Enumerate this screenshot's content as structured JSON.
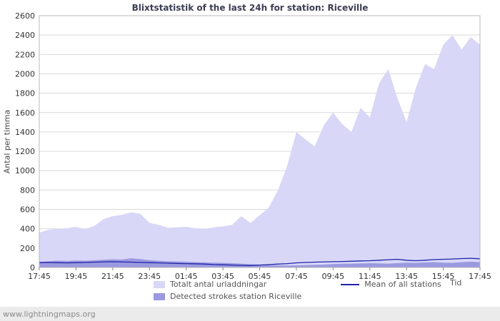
{
  "page": {
    "watermark": "www.lightningmaps.org"
  },
  "chart_data": {
    "type": "area",
    "title": "Blixtstatistik of the last 24h for station: Riceville",
    "ylabel": "Antal per timma",
    "xlabel": "Tid",
    "ylim": [
      0,
      2600
    ],
    "ytick_step": 200,
    "grid": "horizontal",
    "legend_position": "bottom",
    "x_range_hours": [
      0,
      24
    ],
    "x_step_hours": 0.5,
    "x_tick_labels": [
      "17:45",
      "19:45",
      "21:45",
      "23:45",
      "01:45",
      "03:45",
      "05:45",
      "07:45",
      "09:45",
      "11:45",
      "13:45",
      "15:45",
      "17:45"
    ],
    "series": [
      {
        "name": "Totalt antal urladdningar",
        "type": "area",
        "color": "#d8d7f7",
        "values": [
          360,
          390,
          400,
          405,
          420,
          395,
          430,
          500,
          530,
          545,
          570,
          555,
          460,
          440,
          410,
          415,
          420,
          405,
          400,
          415,
          425,
          440,
          530,
          460,
          540,
          620,
          800,
          1050,
          1400,
          1320,
          1250,
          1470,
          1600,
          1480,
          1400,
          1650,
          1550,
          1900,
          2050,
          1750,
          1500,
          1850,
          2100,
          2050,
          2300,
          2400,
          2250,
          2380,
          2300
        ]
      },
      {
        "name": "Detected strokes station Riceville",
        "type": "area",
        "color": "#9b9ae0",
        "values": [
          60,
          65,
          70,
          68,
          72,
          70,
          75,
          80,
          85,
          82,
          95,
          88,
          75,
          70,
          65,
          62,
          60,
          55,
          52,
          50,
          48,
          45,
          40,
          35,
          30,
          25,
          22,
          20,
          22,
          25,
          28,
          30,
          35,
          38,
          40,
          42,
          45,
          42,
          40,
          45,
          50,
          48,
          52,
          55,
          50,
          48,
          55,
          60,
          55
        ]
      },
      {
        "name": "Mean of all stations",
        "type": "line",
        "color": "#2222aa",
        "values": [
          50,
          52,
          50,
          48,
          50,
          52,
          55,
          58,
          60,
          58,
          55,
          52,
          50,
          48,
          45,
          42,
          40,
          38,
          35,
          30,
          28,
          25,
          22,
          20,
          25,
          30,
          35,
          40,
          48,
          52,
          55,
          58,
          60,
          62,
          65,
          68,
          70,
          75,
          80,
          85,
          75,
          70,
          75,
          82,
          85,
          88,
          92,
          95,
          90
        ]
      }
    ]
  }
}
